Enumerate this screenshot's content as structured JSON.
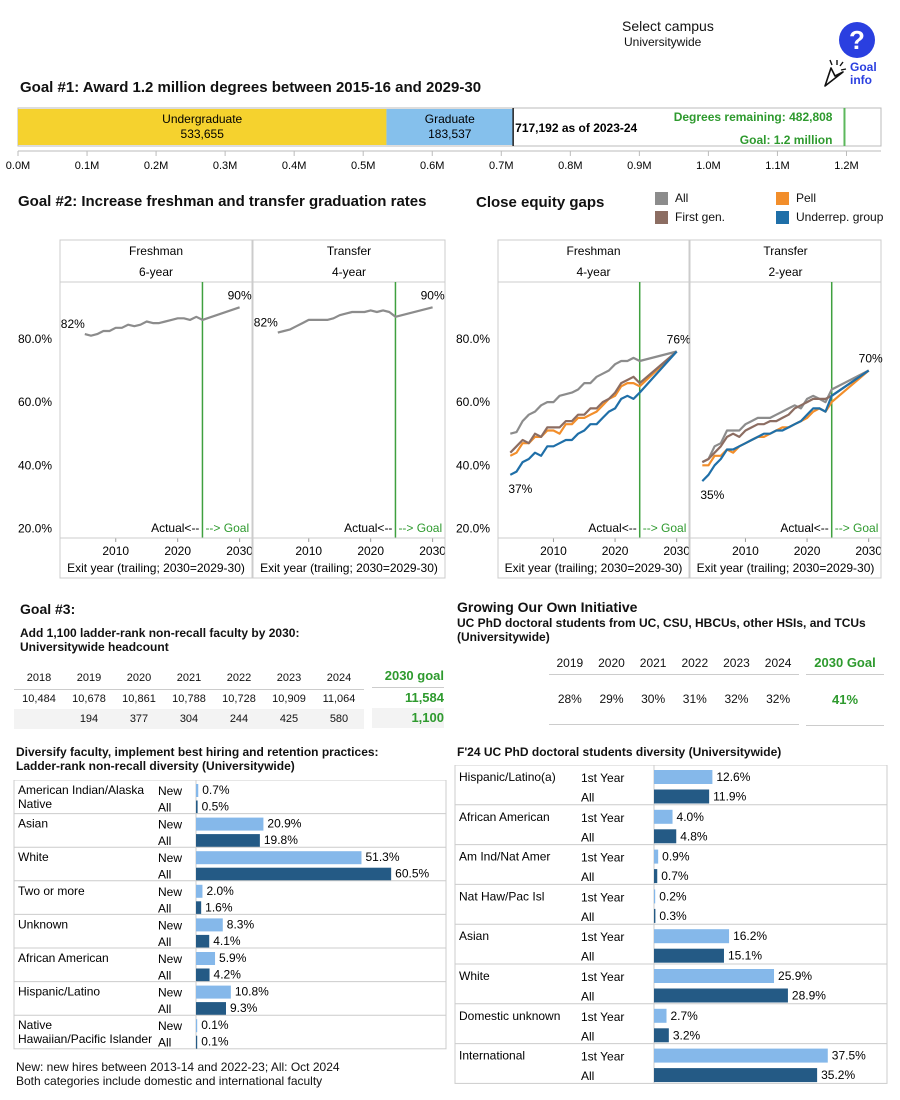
{
  "header": {
    "select_campus_label": "Select campus",
    "campus_value": "Universitywide",
    "goal_info_label_1": "Goal",
    "goal_info_label_2": "info",
    "help_icon_glyph": "?"
  },
  "goal1": {
    "title": "Goal #1: Award 1.2 million degrees between 2015-16 and 2029-30",
    "as_of_text": "717,192 as of 2023-24",
    "remaining_text": "Degrees remaining: 482,808",
    "goal_text": "Goal: 1.2 million",
    "colors": {
      "undergraduate": "#f5d22e",
      "graduate": "#85c0ec",
      "goal_line": "#5cb85c"
    },
    "chart_data": {
      "type": "bar",
      "orientation": "horizontal-stacked",
      "segments": [
        {
          "name": "Undergraduate",
          "value": 533655,
          "label": "533,655"
        },
        {
          "name": "Graduate",
          "value": 183537,
          "label": "183,537"
        }
      ],
      "total": 717192,
      "goal": 1200000,
      "xlim": [
        0,
        1250000
      ],
      "ticks": [
        {
          "value": 0,
          "label": "0.0M"
        },
        {
          "value": 100000,
          "label": "0.1M"
        },
        {
          "value": 200000,
          "label": "0.2M"
        },
        {
          "value": 300000,
          "label": "0.3M"
        },
        {
          "value": 400000,
          "label": "0.4M"
        },
        {
          "value": 500000,
          "label": "0.5M"
        },
        {
          "value": 600000,
          "label": "0.6M"
        },
        {
          "value": 700000,
          "label": "0.7M"
        },
        {
          "value": 800000,
          "label": "0.8M"
        },
        {
          "value": 900000,
          "label": "0.9M"
        },
        {
          "value": 1000000,
          "label": "1.0M"
        },
        {
          "value": 1100000,
          "label": "1.1M"
        },
        {
          "value": 1200000,
          "label": "1.2M"
        }
      ]
    }
  },
  "goal2": {
    "title": "Goal #2: Increase freshman and transfer graduation rates",
    "chart_data": {
      "type": "line",
      "y_ticks": [
        20,
        40,
        60,
        80
      ],
      "y_tick_labels": [
        "20.0%",
        "40.0%",
        "60.0%",
        "80.0%"
      ],
      "ylim": [
        17,
        98
      ],
      "x_ticks": [
        2010,
        2020,
        2030
      ],
      "xlim": [
        2001,
        2032
      ],
      "goal_year": 2024,
      "x_axis_label": "Exit year (trailing; 2030=2029-30)",
      "actual_label": "Actual<--",
      "goal_label": "--> Goal",
      "panels": [
        {
          "header": "Freshman",
          "subheader": "6-year",
          "start_label": "82%",
          "end_label": "90%",
          "series": [
            {
              "name": "All",
              "color": "#8c8c8c",
              "x": [
                2005,
                2006,
                2007,
                2008,
                2009,
                2010,
                2011,
                2012,
                2013,
                2014,
                2015,
                2016,
                2017,
                2018,
                2019,
                2020,
                2021,
                2022,
                2023,
                2024,
                2030
              ],
              "y": [
                81.5,
                81,
                81.5,
                82.5,
                82.5,
                83.5,
                83.5,
                84.5,
                84,
                84.5,
                85.5,
                85,
                85,
                85.5,
                86,
                86.5,
                86.5,
                86,
                87,
                86,
                90
              ]
            }
          ]
        },
        {
          "header": "Transfer",
          "subheader": "4-year",
          "start_label": "82%",
          "end_label": "90%",
          "series": [
            {
              "name": "All",
              "color": "#8c8c8c",
              "x": [
                2005,
                2006,
                2007,
                2008,
                2009,
                2010,
                2011,
                2012,
                2013,
                2014,
                2015,
                2016,
                2017,
                2018,
                2019,
                2020,
                2021,
                2022,
                2023,
                2024,
                2030
              ],
              "y": [
                82,
                82.5,
                83,
                84,
                85,
                86,
                86,
                86,
                86,
                86.5,
                87.5,
                88,
                88.5,
                88.5,
                88.5,
                89,
                88.5,
                89,
                88.5,
                87,
                90
              ]
            }
          ]
        }
      ]
    }
  },
  "equity": {
    "title": "Close equity gaps",
    "legend": [
      {
        "name": "All",
        "color": "#8c8c8c"
      },
      {
        "name": "Pell",
        "color": "#f28e2b"
      },
      {
        "name": "First gen.",
        "color": "#8c6d62"
      },
      {
        "name": "Underrep. group",
        "color": "#1f6fa8"
      }
    ],
    "chart_data": {
      "type": "line",
      "y_ticks": [
        20,
        40,
        60,
        80
      ],
      "y_tick_labels": [
        "20.0%",
        "40.0%",
        "60.0%",
        "80.0%"
      ],
      "ylim": [
        17,
        98
      ],
      "x_ticks": [
        2010,
        2020,
        2030
      ],
      "xlim": [
        2001,
        2032
      ],
      "goal_year": 2024,
      "x_axis_label": "Exit year (trailing; 2030=2029-30)",
      "actual_label": "Actual<--",
      "goal_label": "--> Goal",
      "panels": [
        {
          "header": "Freshman",
          "subheader": "4-year",
          "start_label": "37%",
          "end_label": "76%",
          "x": [
            2003,
            2004,
            2005,
            2006,
            2007,
            2008,
            2009,
            2010,
            2011,
            2012,
            2013,
            2014,
            2015,
            2016,
            2017,
            2018,
            2019,
            2020,
            2021,
            2022,
            2023,
            2024,
            2030
          ],
          "series": [
            {
              "name": "All",
              "color": "#8c8c8c",
              "y": [
                50,
                50.5,
                54,
                56,
                57,
                59,
                60,
                60,
                62,
                62.5,
                63,
                64,
                66,
                66,
                68,
                69,
                70,
                72,
                73,
                73,
                74,
                73,
                76
              ]
            },
            {
              "name": "Pell",
              "color": "#f28e2b",
              "y": [
                43,
                44,
                47,
                47,
                49,
                49,
                51,
                51,
                50,
                53,
                53,
                55,
                55,
                56,
                57,
                59,
                61,
                62,
                65,
                66,
                66,
                65,
                76
              ]
            },
            {
              "name": "First gen.",
              "color": "#8c6d62",
              "y": [
                44,
                46,
                48,
                47,
                50,
                49,
                52,
                52,
                52,
                54,
                54,
                56,
                56,
                58,
                58,
                60,
                61,
                63,
                66,
                67,
                68,
                66,
                76
              ]
            },
            {
              "name": "Underrep. group",
              "color": "#1f6fa8",
              "y": [
                37,
                38,
                41,
                42,
                44,
                43,
                46,
                46,
                47,
                48,
                48,
                50,
                51,
                53,
                53,
                55,
                57,
                58,
                61,
                62,
                61,
                63,
                76
              ]
            }
          ]
        },
        {
          "header": "Transfer",
          "subheader": "2-year",
          "start_label": "35%",
          "end_label": "70%",
          "x": [
            2003,
            2004,
            2005,
            2006,
            2007,
            2008,
            2009,
            2010,
            2011,
            2012,
            2013,
            2014,
            2015,
            2016,
            2017,
            2018,
            2019,
            2020,
            2021,
            2022,
            2023,
            2024,
            2030
          ],
          "series": [
            {
              "name": "All",
              "color": "#8c8c8c",
              "y": [
                41,
                42,
                46,
                47,
                51,
                51,
                51,
                53,
                54,
                55,
                55,
                55,
                56,
                57,
                58,
                59,
                58,
                61,
                62,
                61,
                60,
                64,
                70
              ]
            },
            {
              "name": "Pell",
              "color": "#f28e2b",
              "y": [
                40,
                40,
                43,
                43,
                45,
                44,
                46,
                47,
                48,
                49,
                49,
                50,
                51,
                52,
                52,
                53,
                54,
                55,
                57,
                58,
                57,
                60,
                70
              ]
            },
            {
              "name": "First gen.",
              "color": "#8c6d62",
              "y": [
                41,
                42,
                44,
                46,
                49,
                50,
                49,
                51,
                52,
                53,
                53,
                54,
                54,
                55,
                56,
                58,
                59,
                60,
                61,
                61,
                61,
                62,
                70
              ]
            },
            {
              "name": "Underrep. group",
              "color": "#1f6fa8",
              "y": [
                35,
                37,
                40,
                42,
                45,
                45,
                46,
                47,
                48,
                49,
                50,
                50,
                51,
                51,
                52,
                53,
                54,
                56,
                58,
                58,
                57,
                62,
                70
              ]
            }
          ]
        }
      ]
    }
  },
  "goal3": {
    "title": "Goal #3:",
    "subtitle_1": "Add 1,100 ladder-rank non-recall faculty by 2030:",
    "subtitle_2": "Universitywide headcount",
    "goal_header": "2030 goal",
    "years": [
      "2018",
      "2019",
      "2020",
      "2021",
      "2022",
      "2023",
      "2024"
    ],
    "headcount": [
      "10,484",
      "10,678",
      "10,861",
      "10,788",
      "10,728",
      "10,909",
      "11,064"
    ],
    "added": [
      "",
      "194",
      "377",
      "304",
      "244",
      "425",
      "580"
    ],
    "goal_headcount": "11,584",
    "goal_added": "1,100"
  },
  "goo": {
    "title": "Growing Our Own Initiative",
    "subtitle": "UC PhD doctoral students from UC, CSU, HBCUs, other HSIs, and TCUs (Universitywide)",
    "goal_header": "2030 Goal",
    "years": [
      "2019",
      "2020",
      "2021",
      "2022",
      "2023",
      "2024"
    ],
    "values": [
      "28%",
      "29%",
      "30%",
      "31%",
      "32%",
      "32%"
    ],
    "goal_value": "41%"
  },
  "faculty_div": {
    "title_1": "Diversify faculty, implement best hiring and retention practices:",
    "title_2": "Ladder-rank non-recall diversity (Universitywide)",
    "note_1": "New: new hires between 2013-14 and 2022-23; All: Oct 2024",
    "note_2": "Both categories include domestic and international faculty",
    "colors": {
      "a": "#85b8ea",
      "b": "#245a85"
    },
    "chart_data": {
      "type": "bar",
      "orientation": "horizontal",
      "xlim": [
        0,
        62
      ],
      "series_names": [
        "New",
        "All"
      ],
      "categories": [
        {
          "name": "American Indian/Alaska Native",
          "rows": [
            {
              "label": "New",
              "value": 0.7,
              "text": "0.7%"
            },
            {
              "label": "All",
              "value": 0.5,
              "text": "0.5%"
            }
          ]
        },
        {
          "name": "Asian",
          "rows": [
            {
              "label": "New",
              "value": 20.9,
              "text": "20.9%"
            },
            {
              "label": "All",
              "value": 19.8,
              "text": "19.8%"
            }
          ]
        },
        {
          "name": "White",
          "rows": [
            {
              "label": "New",
              "value": 51.3,
              "text": "51.3%"
            },
            {
              "label": "All",
              "value": 60.5,
              "text": "60.5%"
            }
          ]
        },
        {
          "name": "Two or more",
          "rows": [
            {
              "label": "New",
              "value": 2.0,
              "text": "2.0%"
            },
            {
              "label": "All",
              "value": 1.6,
              "text": "1.6%"
            }
          ]
        },
        {
          "name": "Unknown",
          "rows": [
            {
              "label": "New",
              "value": 8.3,
              "text": "8.3%"
            },
            {
              "label": "All",
              "value": 4.1,
              "text": "4.1%"
            }
          ]
        },
        {
          "name": "African American",
          "rows": [
            {
              "label": "New",
              "value": 5.9,
              "text": "5.9%"
            },
            {
              "label": "All",
              "value": 4.2,
              "text": "4.2%"
            }
          ]
        },
        {
          "name": "Hispanic/Latino",
          "rows": [
            {
              "label": "New",
              "value": 10.8,
              "text": "10.8%"
            },
            {
              "label": "All",
              "value": 9.3,
              "text": "9.3%"
            }
          ]
        },
        {
          "name": "Native Hawaiian/Pacific Islander",
          "rows": [
            {
              "label": "New",
              "value": 0.1,
              "text": "0.1%"
            },
            {
              "label": "All",
              "value": 0.1,
              "text": "0.1%"
            }
          ]
        }
      ]
    }
  },
  "phd_div": {
    "title": "F'24 UC PhD doctoral students diversity (Universitywide)",
    "colors": {
      "a": "#85b8ea",
      "b": "#245a85"
    },
    "chart_data": {
      "type": "bar",
      "orientation": "horizontal",
      "xlim": [
        0,
        41
      ],
      "series_names": [
        "1st Year",
        "All"
      ],
      "categories": [
        {
          "name": "Hispanic/Latino(a)",
          "rows": [
            {
              "label": "1st Year",
              "value": 12.6,
              "text": "12.6%"
            },
            {
              "label": "All",
              "value": 11.9,
              "text": "11.9%"
            }
          ]
        },
        {
          "name": "African American",
          "rows": [
            {
              "label": "1st Year",
              "value": 4.0,
              "text": "4.0%"
            },
            {
              "label": "All",
              "value": 4.8,
              "text": "4.8%"
            }
          ]
        },
        {
          "name": "Am Ind/Nat Amer",
          "rows": [
            {
              "label": "1st Year",
              "value": 0.9,
              "text": "0.9%"
            },
            {
              "label": "All",
              "value": 0.7,
              "text": "0.7%"
            }
          ]
        },
        {
          "name": "Nat Haw/Pac Isl",
          "rows": [
            {
              "label": "1st Year",
              "value": 0.2,
              "text": "0.2%"
            },
            {
              "label": "All",
              "value": 0.3,
              "text": "0.3%"
            }
          ]
        },
        {
          "name": "Asian",
          "rows": [
            {
              "label": "1st Year",
              "value": 16.2,
              "text": "16.2%"
            },
            {
              "label": "All",
              "value": 15.1,
              "text": "15.1%"
            }
          ]
        },
        {
          "name": "White",
          "rows": [
            {
              "label": "1st Year",
              "value": 25.9,
              "text": "25.9%"
            },
            {
              "label": "All",
              "value": 28.9,
              "text": "28.9%"
            }
          ]
        },
        {
          "name": "Domestic unknown",
          "rows": [
            {
              "label": "1st Year",
              "value": 2.7,
              "text": "2.7%"
            },
            {
              "label": "All",
              "value": 3.2,
              "text": "3.2%"
            }
          ]
        },
        {
          "name": "International",
          "rows": [
            {
              "label": "1st Year",
              "value": 37.5,
              "text": "37.5%"
            },
            {
              "label": "All",
              "value": 35.2,
              "text": "35.2%"
            }
          ]
        }
      ]
    }
  }
}
